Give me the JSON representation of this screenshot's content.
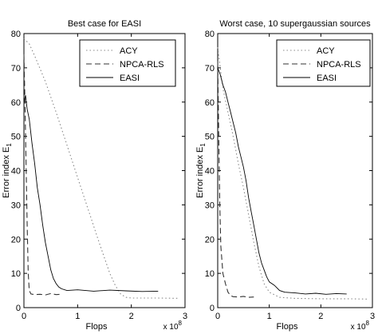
{
  "chart_data": [
    {
      "type": "line",
      "title": "Best case for EASI",
      "xlabel": "Flops",
      "ylabel": "Error index E",
      "ylabel_subscript": "1",
      "x_multiplier_base": "x 10",
      "x_multiplier_exp": "8",
      "xlim": [
        0,
        3
      ],
      "ylim": [
        0,
        80
      ],
      "x_ticks": [
        0,
        1,
        2,
        3
      ],
      "y_ticks": [
        0,
        10,
        20,
        30,
        40,
        50,
        60,
        70,
        80
      ],
      "grid": false,
      "legend_placement": "top-right",
      "series": [
        {
          "name": "ACY",
          "style": "dotted",
          "color": "#888888",
          "points": [
            [
              0,
              78.5
            ],
            [
              0.1,
              77
            ],
            [
              0.2,
              73.5
            ],
            [
              0.4,
              66
            ],
            [
              0.6,
              57
            ],
            [
              0.8,
              47.5
            ],
            [
              1.0,
              38
            ],
            [
              1.2,
              28.5
            ],
            [
              1.4,
              19
            ],
            [
              1.6,
              10
            ],
            [
              1.7,
              6.5
            ],
            [
              1.8,
              4
            ],
            [
              1.9,
              3
            ],
            [
              2.0,
              2.8
            ],
            [
              2.5,
              2.8
            ],
            [
              2.9,
              2.7
            ]
          ]
        },
        {
          "name": "NPCA-RLS",
          "style": "dashed",
          "color": "#333333",
          "points": [
            [
              0,
              74
            ],
            [
              0.02,
              60
            ],
            [
              0.04,
              42
            ],
            [
              0.06,
              25
            ],
            [
              0.08,
              10
            ],
            [
              0.1,
              5
            ],
            [
              0.13,
              4
            ],
            [
              0.2,
              3.8
            ],
            [
              0.3,
              3.9
            ],
            [
              0.4,
              3.7
            ],
            [
              0.5,
              4.1
            ],
            [
              0.6,
              3.8
            ],
            [
              0.7,
              3.9
            ]
          ]
        },
        {
          "name": "EASI",
          "style": "solid",
          "color": "#000000",
          "points": [
            [
              0,
              60
            ],
            [
              0.03,
              62
            ],
            [
              0.06,
              58
            ],
            [
              0.1,
              55
            ],
            [
              0.15,
              48
            ],
            [
              0.2,
              42
            ],
            [
              0.25,
              35
            ],
            [
              0.3,
              30
            ],
            [
              0.35,
              24
            ],
            [
              0.4,
              19
            ],
            [
              0.45,
              15
            ],
            [
              0.5,
              11
            ],
            [
              0.55,
              8.5
            ],
            [
              0.6,
              7
            ],
            [
              0.65,
              6
            ],
            [
              0.7,
              5.5
            ],
            [
              0.8,
              5
            ],
            [
              1.0,
              5.2
            ],
            [
              1.3,
              4.8
            ],
            [
              1.6,
              5.1
            ],
            [
              1.9,
              4.9
            ],
            [
              2.2,
              4.7
            ],
            [
              2.5,
              4.8
            ]
          ]
        }
      ]
    },
    {
      "type": "line",
      "title": "Worst case, 10 supergaussian sources",
      "xlabel": "Flops",
      "ylabel": "Error index E",
      "ylabel_subscript": "1",
      "x_multiplier_base": "x 10",
      "x_multiplier_exp": "8",
      "xlim": [
        0,
        3
      ],
      "ylim": [
        0,
        80
      ],
      "x_ticks": [
        0,
        1,
        2,
        3
      ],
      "y_ticks": [
        0,
        10,
        20,
        30,
        40,
        50,
        60,
        70,
        80
      ],
      "grid": false,
      "legend_placement": "top-right",
      "series": [
        {
          "name": "ACY",
          "style": "dotted",
          "color": "#888888",
          "points": [
            [
              0,
              76
            ],
            [
              0.05,
              70
            ],
            [
              0.1,
              64
            ],
            [
              0.2,
              57
            ],
            [
              0.3,
              50
            ],
            [
              0.4,
              42
            ],
            [
              0.5,
              35
            ],
            [
              0.6,
              27
            ],
            [
              0.7,
              19
            ],
            [
              0.8,
              12
            ],
            [
              0.9,
              7
            ],
            [
              1.0,
              4.5
            ],
            [
              1.2,
              3
            ],
            [
              1.5,
              2.7
            ],
            [
              2.0,
              2.6
            ],
            [
              2.5,
              2.6
            ],
            [
              2.9,
              2.5
            ]
          ]
        },
        {
          "name": "NPCA-RLS",
          "style": "dashed",
          "color": "#333333",
          "points": [
            [
              0,
              72
            ],
            [
              0.02,
              50
            ],
            [
              0.04,
              30
            ],
            [
              0.06,
              18
            ],
            [
              0.1,
              10
            ],
            [
              0.15,
              7
            ],
            [
              0.2,
              4.5
            ],
            [
              0.25,
              3.5
            ],
            [
              0.3,
              3.2
            ],
            [
              0.4,
              3.1
            ],
            [
              0.5,
              3.3
            ],
            [
              0.6,
              3.0
            ],
            [
              0.7,
              3.1
            ]
          ]
        },
        {
          "name": "EASI",
          "style": "solid",
          "color": "#000000",
          "points": [
            [
              0,
              70
            ],
            [
              0.05,
              68
            ],
            [
              0.1,
              65
            ],
            [
              0.15,
              63
            ],
            [
              0.2,
              60
            ],
            [
              0.25,
              57
            ],
            [
              0.3,
              54
            ],
            [
              0.35,
              51
            ],
            [
              0.4,
              47
            ],
            [
              0.45,
              44
            ],
            [
              0.5,
              41
            ],
            [
              0.55,
              37
            ],
            [
              0.6,
              32
            ],
            [
              0.65,
              28
            ],
            [
              0.7,
              24
            ],
            [
              0.75,
              20
            ],
            [
              0.8,
              16
            ],
            [
              0.85,
              13
            ],
            [
              0.9,
              11
            ],
            [
              0.95,
              9
            ],
            [
              1.0,
              7.5
            ],
            [
              1.1,
              6.5
            ],
            [
              1.2,
              5
            ],
            [
              1.3,
              4.5
            ],
            [
              1.5,
              4.3
            ],
            [
              1.7,
              4.0
            ],
            [
              1.9,
              4.2
            ],
            [
              2.1,
              3.9
            ],
            [
              2.3,
              4.1
            ],
            [
              2.5,
              4.0
            ]
          ]
        }
      ]
    }
  ]
}
